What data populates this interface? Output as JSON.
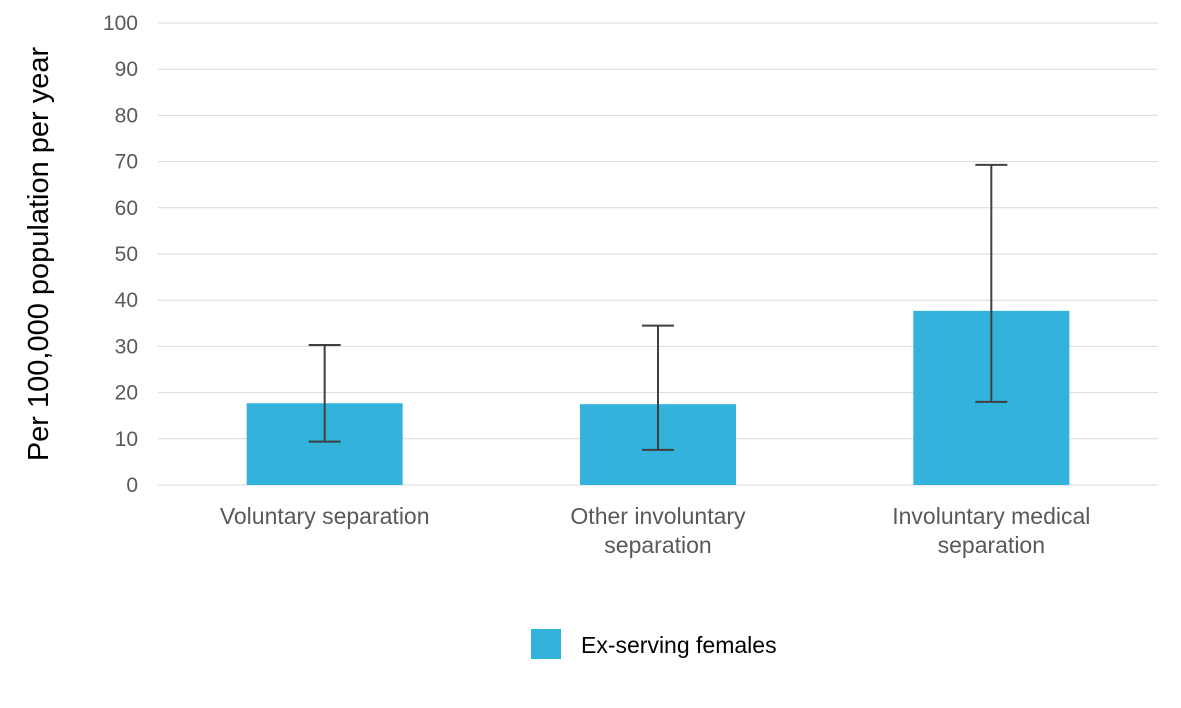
{
  "chart_data": {
    "type": "bar",
    "title": "",
    "xlabel": "",
    "ylabel": "Per 100,000 population per year",
    "ylim": [
      0,
      100
    ],
    "yticks": [
      0,
      10,
      20,
      30,
      40,
      50,
      60,
      70,
      80,
      90,
      100
    ],
    "grid": true,
    "legend_position": "bottom",
    "categories": [
      [
        "Voluntary separation"
      ],
      [
        "Other involuntary",
        "separation"
      ],
      [
        "Involuntary medical",
        "separation"
      ]
    ],
    "series": [
      {
        "name": "Ex-serving females",
        "color": "#33B3DC",
        "values": [
          17.7,
          17.5,
          37.7
        ],
        "error_low": [
          9.4,
          7.6,
          18.0
        ],
        "error_high": [
          30.3,
          34.5,
          69.3
        ]
      }
    ]
  }
}
